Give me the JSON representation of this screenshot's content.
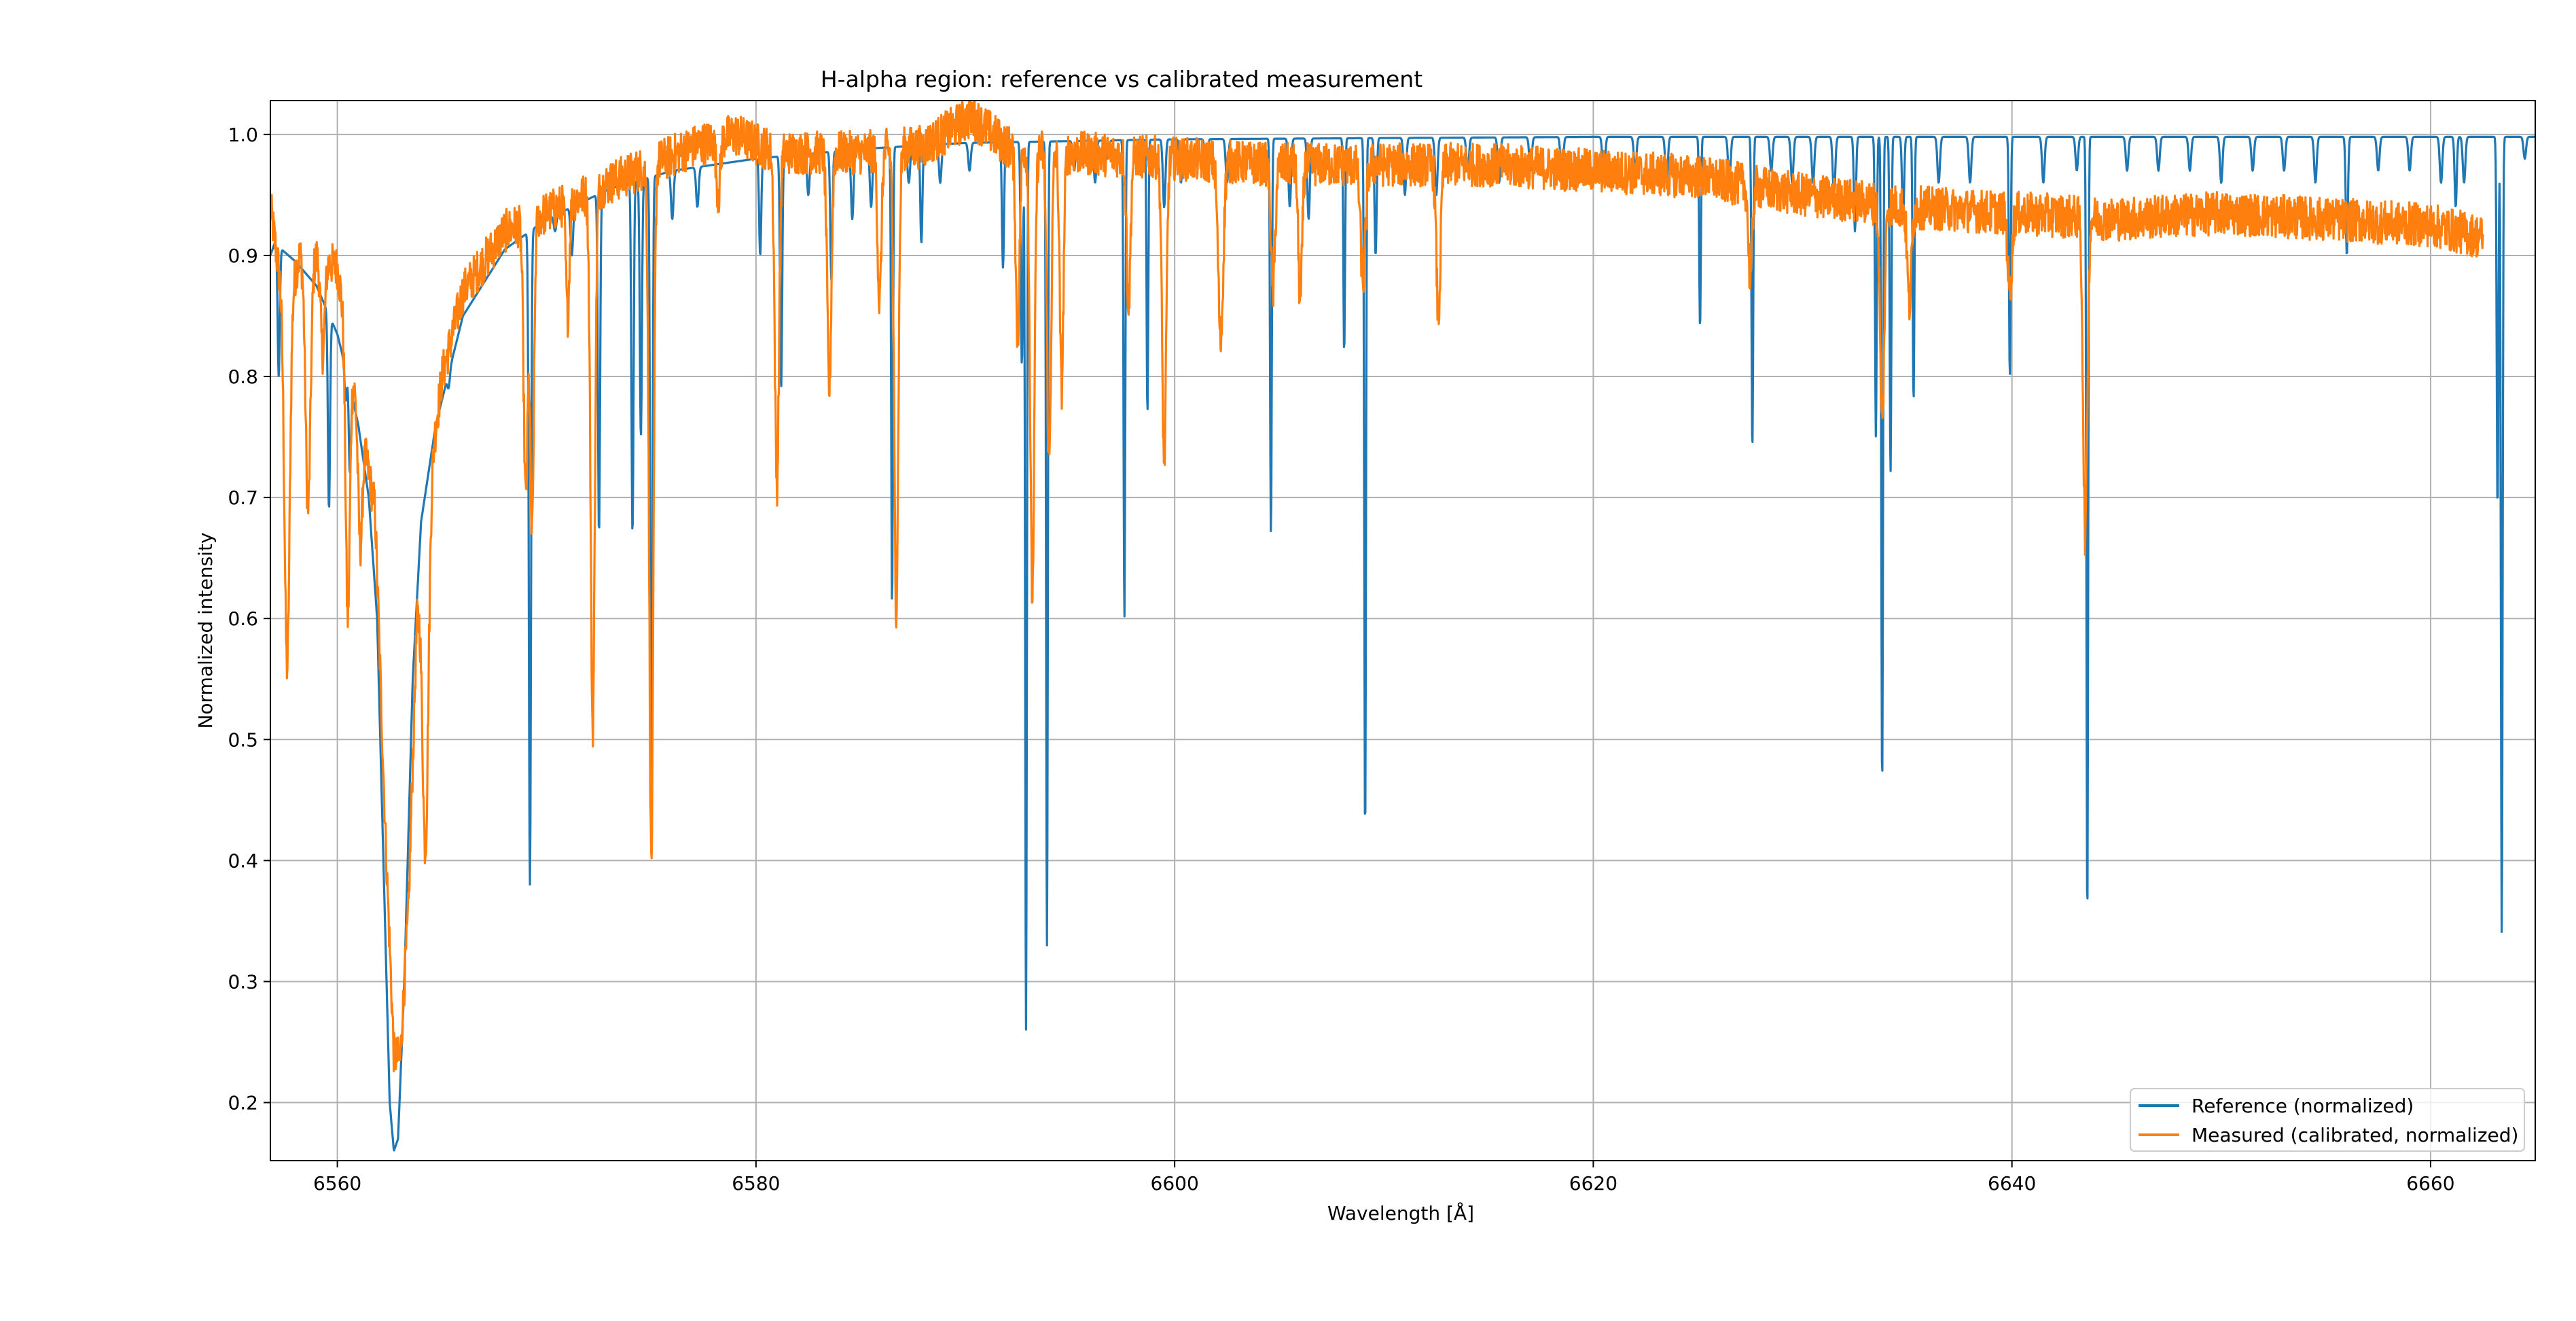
{
  "chart_data": {
    "type": "line",
    "title": "H-alpha region: reference vs calibrated measurement",
    "xlabel": "Wavelength [Å]",
    "ylabel": "Normalized intensity",
    "xlim": [
      6556.8,
      6665.0
    ],
    "ylim": [
      0.152,
      1.028
    ],
    "grid": true,
    "legend_location": "lower right",
    "x_ticks": [
      6560,
      6580,
      6600,
      6620,
      6640,
      6660
    ],
    "y_ticks": [
      0.2,
      0.3,
      0.4,
      0.5,
      0.6,
      0.7,
      0.8,
      0.9,
      1.0
    ],
    "x_tick_labels": [
      "6560",
      "6580",
      "6600",
      "6620",
      "6640",
      "6660"
    ],
    "y_tick_labels": [
      "0.2",
      "0.3",
      "0.4",
      "0.5",
      "0.6",
      "0.7",
      "0.8",
      "0.9",
      "1.0"
    ],
    "series": [
      {
        "name": "Reference (normalized)",
        "color": "#1f77b4",
        "x_range": [
          6556.8,
          6665.0
        ],
        "continuum_points": [
          [
            6556.8,
            0.9
          ],
          [
            6557.0,
            0.91
          ],
          [
            6558.0,
            0.895
          ],
          [
            6559.0,
            0.875
          ],
          [
            6560.0,
            0.835
          ],
          [
            6560.5,
            0.8
          ],
          [
            6561.0,
            0.76
          ],
          [
            6561.5,
            0.7
          ],
          [
            6561.9,
            0.6
          ],
          [
            6562.2,
            0.4
          ],
          [
            6562.5,
            0.2
          ],
          [
            6562.7,
            0.16
          ],
          [
            6562.9,
            0.17
          ],
          [
            6563.2,
            0.3
          ],
          [
            6563.6,
            0.55
          ],
          [
            6564.0,
            0.68
          ],
          [
            6564.7,
            0.76
          ],
          [
            6566.0,
            0.85
          ],
          [
            6568.0,
            0.905
          ],
          [
            6570.0,
            0.93
          ],
          [
            6573.0,
            0.955
          ],
          [
            6576.0,
            0.97
          ],
          [
            6580.0,
            0.98
          ],
          [
            6585.0,
            0.988
          ],
          [
            6590.0,
            0.993
          ],
          [
            6600.0,
            0.996
          ],
          [
            6620.0,
            0.998
          ],
          [
            6665.0,
            0.998
          ]
        ],
        "absorption_lines": [
          [
            6557.2,
            0.8,
            0.05
          ],
          [
            6559.6,
            0.69,
            0.05
          ],
          [
            6560.4,
            0.78,
            0.05
          ],
          [
            6560.6,
            0.72,
            0.05
          ],
          [
            6565.3,
            0.79,
            0.06
          ],
          [
            6569.2,
            0.38,
            0.05
          ],
          [
            6570.4,
            0.92,
            0.06
          ],
          [
            6571.2,
            0.9,
            0.06
          ],
          [
            6572.5,
            0.67,
            0.05
          ],
          [
            6574.1,
            0.67,
            0.05
          ],
          [
            6574.5,
            0.75,
            0.05
          ],
          [
            6575.0,
            0.42,
            0.05
          ],
          [
            6576.0,
            0.93,
            0.06
          ],
          [
            6577.2,
            0.94,
            0.06
          ],
          [
            6580.2,
            0.9,
            0.05
          ],
          [
            6581.2,
            0.79,
            0.05
          ],
          [
            6582.5,
            0.95,
            0.06
          ],
          [
            6583.6,
            0.88,
            0.05
          ],
          [
            6584.6,
            0.93,
            0.06
          ],
          [
            6585.5,
            0.94,
            0.06
          ],
          [
            6586.5,
            0.61,
            0.04
          ],
          [
            6587.3,
            0.96,
            0.06
          ],
          [
            6587.9,
            0.91,
            0.05
          ],
          [
            6588.8,
            0.96,
            0.06
          ],
          [
            6590.2,
            0.97,
            0.06
          ],
          [
            6591.8,
            0.89,
            0.05
          ],
          [
            6592.7,
            0.81,
            0.05
          ],
          [
            6592.9,
            0.26,
            0.04
          ],
          [
            6593.9,
            0.33,
            0.04
          ],
          [
            6595.2,
            0.97,
            0.06
          ],
          [
            6596.2,
            0.96,
            0.06
          ],
          [
            6596.8,
            0.98,
            0.06
          ],
          [
            6597.6,
            0.6,
            0.04
          ],
          [
            6598.7,
            0.77,
            0.04
          ],
          [
            6599.5,
            0.94,
            0.06
          ],
          [
            6600.3,
            0.96,
            0.06
          ],
          [
            6601.5,
            0.97,
            0.06
          ],
          [
            6602.5,
            0.96,
            0.06
          ],
          [
            6604.6,
            0.67,
            0.04
          ],
          [
            6605.5,
            0.94,
            0.06
          ],
          [
            6606.4,
            0.93,
            0.06
          ],
          [
            6608.1,
            0.82,
            0.04
          ],
          [
            6609.1,
            0.42,
            0.04
          ],
          [
            6609.6,
            0.9,
            0.05
          ],
          [
            6611.0,
            0.95,
            0.06
          ],
          [
            6612.5,
            0.95,
            0.06
          ],
          [
            6614.0,
            0.97,
            0.06
          ],
          [
            6615.5,
            0.96,
            0.06
          ],
          [
            6617.0,
            0.97,
            0.06
          ],
          [
            6618.5,
            0.96,
            0.06
          ],
          [
            6620.5,
            0.96,
            0.06
          ],
          [
            6622.0,
            0.97,
            0.06
          ],
          [
            6623.5,
            0.96,
            0.06
          ],
          [
            6625.1,
            0.84,
            0.04
          ],
          [
            6626.5,
            0.96,
            0.06
          ],
          [
            6627.6,
            0.74,
            0.04
          ],
          [
            6628.5,
            0.97,
            0.06
          ],
          [
            6629.5,
            0.96,
            0.06
          ],
          [
            6630.5,
            0.96,
            0.06
          ],
          [
            6631.5,
            0.95,
            0.06
          ],
          [
            6632.5,
            0.92,
            0.05
          ],
          [
            6633.5,
            0.75,
            0.04
          ],
          [
            6633.8,
            0.46,
            0.04
          ],
          [
            6634.2,
            0.72,
            0.04
          ],
          [
            6634.8,
            0.93,
            0.05
          ],
          [
            6635.3,
            0.78,
            0.04
          ],
          [
            6636.5,
            0.96,
            0.06
          ],
          [
            6638.0,
            0.96,
            0.06
          ],
          [
            6639.9,
            0.8,
            0.04
          ],
          [
            6641.5,
            0.96,
            0.06
          ],
          [
            6643.1,
            0.97,
            0.06
          ],
          [
            6643.6,
            0.35,
            0.04
          ],
          [
            6645.5,
            0.97,
            0.06
          ],
          [
            6647.0,
            0.97,
            0.06
          ],
          [
            6648.5,
            0.97,
            0.06
          ],
          [
            6650.0,
            0.96,
            0.06
          ],
          [
            6651.5,
            0.97,
            0.06
          ],
          [
            6653.0,
            0.97,
            0.06
          ],
          [
            6654.5,
            0.96,
            0.06
          ],
          [
            6656.0,
            0.9,
            0.05
          ],
          [
            6657.5,
            0.97,
            0.06
          ],
          [
            6659.0,
            0.97,
            0.06
          ],
          [
            6660.5,
            0.96,
            0.06
          ],
          [
            6661.2,
            0.94,
            0.05
          ],
          [
            6661.6,
            0.96,
            0.06
          ],
          [
            6663.2,
            0.69,
            0.04
          ],
          [
            6663.4,
            0.34,
            0.04
          ],
          [
            6664.5,
            0.98,
            0.06
          ]
        ]
      },
      {
        "name": "Measured (calibrated, normalized)",
        "color": "#ff7f0e",
        "x_range": [
          6556.8,
          6662.5
        ],
        "continuum_points": [
          [
            6556.8,
            0.94
          ],
          [
            6557.5,
            0.85
          ],
          [
            6558.2,
            0.9
          ],
          [
            6559.0,
            0.9
          ],
          [
            6560.0,
            0.89
          ],
          [
            6561.0,
            0.77
          ],
          [
            6561.8,
            0.69
          ],
          [
            6562.3,
            0.42
          ],
          [
            6562.7,
            0.24
          ],
          [
            6563.0,
            0.235
          ],
          [
            6563.4,
            0.36
          ],
          [
            6563.8,
            0.6
          ],
          [
            6564.5,
            0.73
          ],
          [
            6565.0,
            0.8
          ],
          [
            6566.0,
            0.87
          ],
          [
            6568.0,
            0.92
          ],
          [
            6570.0,
            0.935
          ],
          [
            6573.0,
            0.96
          ],
          [
            6575.0,
            0.975
          ],
          [
            6577.0,
            0.99
          ],
          [
            6579.0,
            1.0
          ],
          [
            6581.0,
            0.985
          ],
          [
            6585.0,
            0.985
          ],
          [
            6588.0,
            0.99
          ],
          [
            6590.3,
            1.015
          ],
          [
            6592.0,
            0.99
          ],
          [
            6595.0,
            0.985
          ],
          [
            6600.0,
            0.98
          ],
          [
            6605.0,
            0.975
          ],
          [
            6610.0,
            0.975
          ],
          [
            6615.0,
            0.975
          ],
          [
            6620.0,
            0.97
          ],
          [
            6625.0,
            0.965
          ],
          [
            6630.0,
            0.95
          ],
          [
            6635.0,
            0.94
          ],
          [
            6640.0,
            0.935
          ],
          [
            6645.0,
            0.93
          ],
          [
            6650.0,
            0.935
          ],
          [
            6655.0,
            0.93
          ],
          [
            6660.0,
            0.925
          ],
          [
            6662.5,
            0.915
          ]
        ],
        "absorption_lines": [
          [
            6557.6,
            0.56,
            0.12
          ],
          [
            6558.6,
            0.69,
            0.12
          ],
          [
            6559.3,
            0.82,
            0.1
          ],
          [
            6560.5,
            0.6,
            0.1
          ],
          [
            6561.1,
            0.66,
            0.1
          ],
          [
            6564.2,
            0.41,
            0.14
          ],
          [
            6569.0,
            0.7,
            0.1
          ],
          [
            6569.3,
            0.67,
            0.09
          ],
          [
            6571.0,
            0.85,
            0.08
          ],
          [
            6572.2,
            0.51,
            0.1
          ],
          [
            6575.0,
            0.4,
            0.1
          ],
          [
            6578.2,
            0.95,
            0.09
          ],
          [
            6581.0,
            0.71,
            0.1
          ],
          [
            6583.5,
            0.79,
            0.1
          ],
          [
            6585.9,
            0.86,
            0.09
          ],
          [
            6586.7,
            0.61,
            0.1
          ],
          [
            6592.5,
            0.83,
            0.09
          ],
          [
            6593.2,
            0.62,
            0.1
          ],
          [
            6594.0,
            0.73,
            0.1
          ],
          [
            6594.6,
            0.79,
            0.09
          ],
          [
            6597.8,
            0.86,
            0.09
          ],
          [
            6599.5,
            0.73,
            0.1
          ],
          [
            6602.2,
            0.83,
            0.12
          ],
          [
            6604.7,
            0.87,
            0.1
          ],
          [
            6606.0,
            0.86,
            0.09
          ],
          [
            6609.0,
            0.88,
            0.12
          ],
          [
            6612.6,
            0.85,
            0.1
          ],
          [
            6627.5,
            0.88,
            0.09
          ],
          [
            6633.8,
            0.76,
            0.1
          ],
          [
            6635.1,
            0.86,
            0.1
          ],
          [
            6639.9,
            0.87,
            0.1
          ],
          [
            6643.5,
            0.67,
            0.1
          ]
        ],
        "noise_amplitude": 0.018
      }
    ]
  }
}
